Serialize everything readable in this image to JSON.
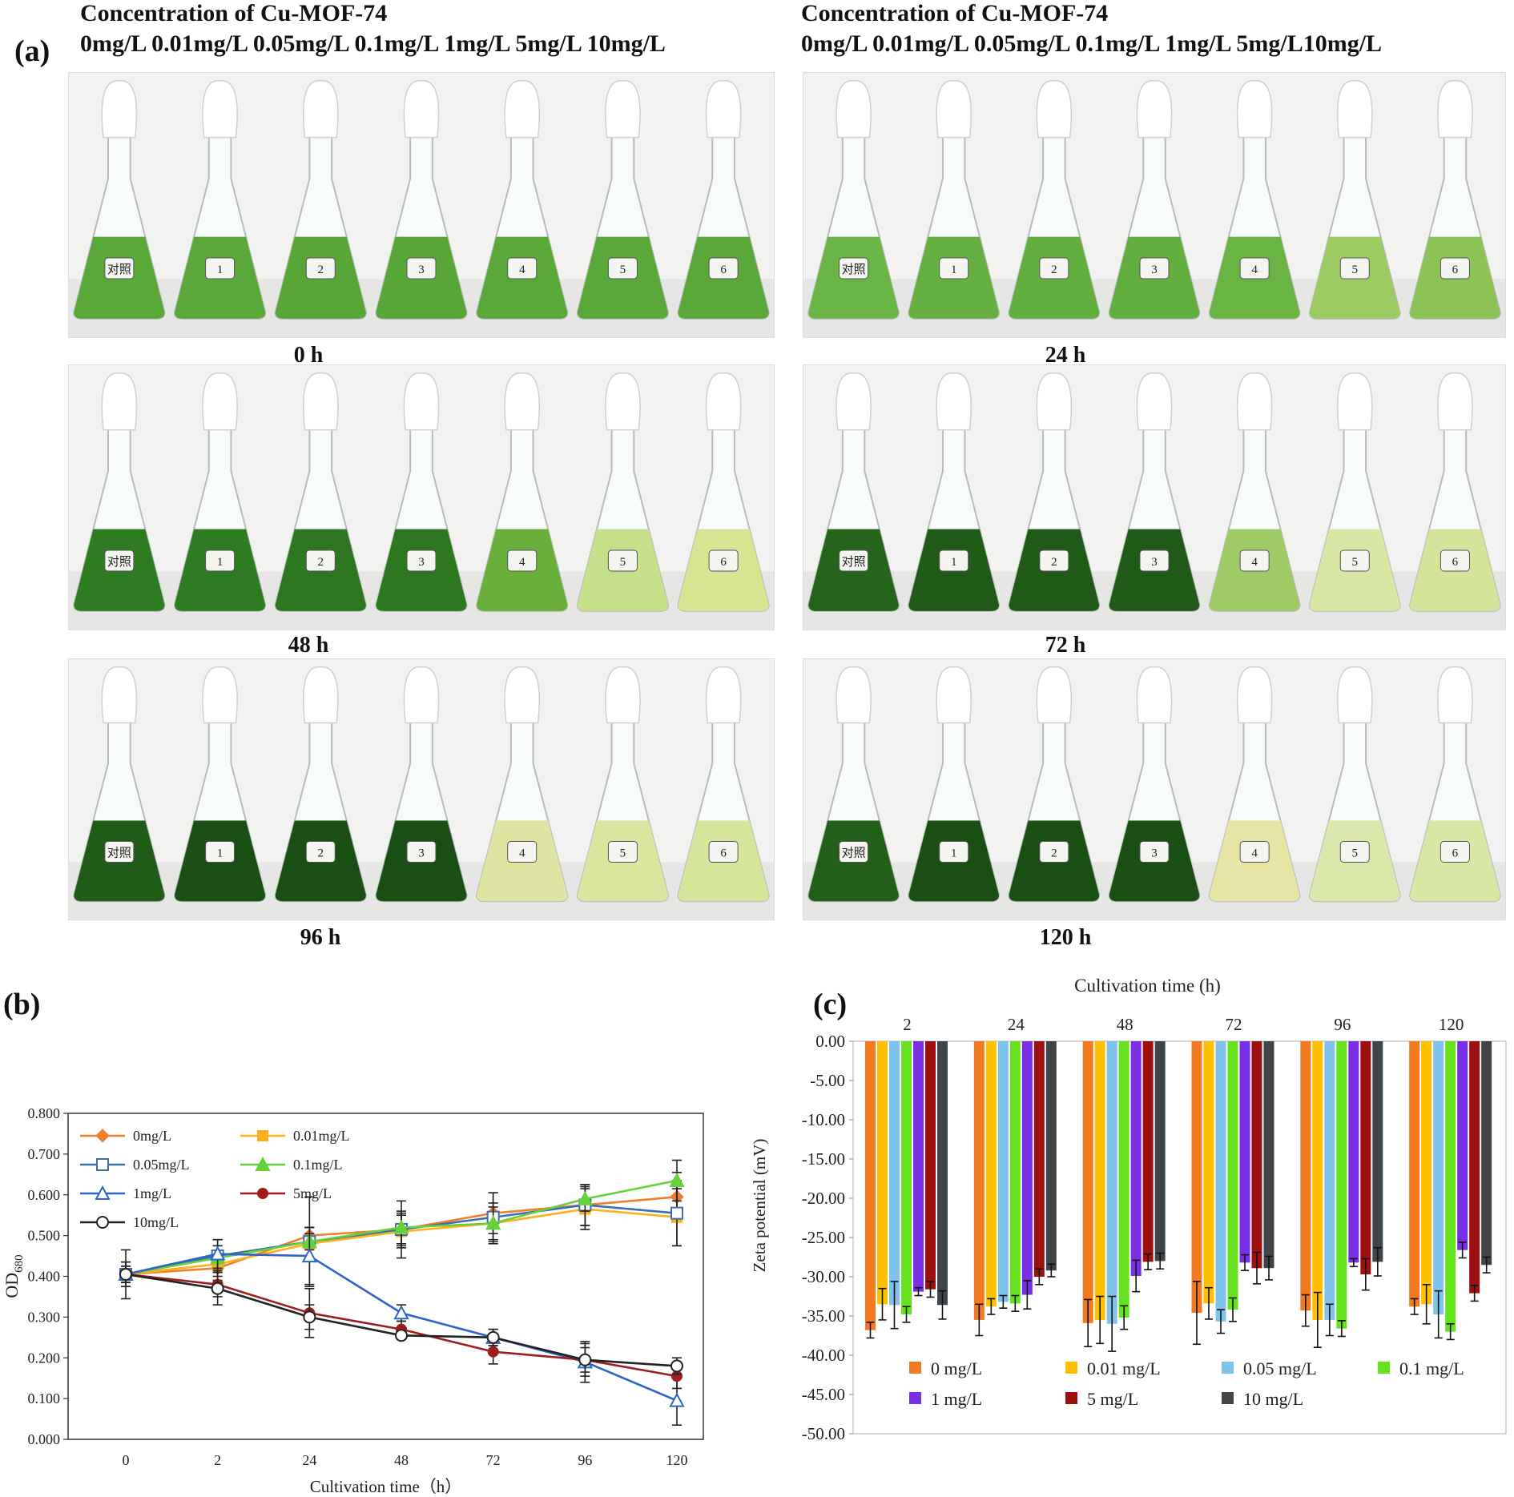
{
  "panel_a": {
    "label": "(a)",
    "left_header": {
      "title": "Concentration of Cu-MOF-74",
      "concentrations": "0mg/L 0.01mg/L 0.05mg/L 0.1mg/L  1mg/L  5mg/L  10mg/L"
    },
    "right_header": {
      "title": "Concentration of Cu-MOF-74",
      "concentrations": "0mg/L 0.01mg/L 0.05mg/L 0.1mg/L 1mg/L 5mg/L10mg/L"
    },
    "photos": [
      {
        "time": "0 h",
        "flask_labels": [
          "对照",
          "1",
          "2",
          "3",
          "4",
          "5",
          "6"
        ],
        "liquid_colors": [
          "#5aa83a",
          "#5aa83a",
          "#58a638",
          "#58a638",
          "#5aa83a",
          "#5aa83a",
          "#5aa83a"
        ]
      },
      {
        "time": "24 h",
        "flask_labels": [
          "对照",
          "1",
          "2",
          "3",
          "4",
          "5",
          "6"
        ],
        "liquid_colors": [
          "#6bb446",
          "#65b040",
          "#62ae3e",
          "#62ae3e",
          "#6ab444",
          "#9ccb63",
          "#8cc356"
        ]
      },
      {
        "time": "48 h",
        "flask_labels": [
          "对照",
          "1",
          "2",
          "3",
          "4",
          "5",
          "6"
        ],
        "liquid_colors": [
          "#2f7b22",
          "#2f7b22",
          "#2c7720",
          "#2c7720",
          "#6aae3c",
          "#c6df8a",
          "#d6e592"
        ]
      },
      {
        "time": "72 h",
        "flask_labels": [
          "对照",
          "1",
          "2",
          "3",
          "4",
          "5",
          "6"
        ],
        "liquid_colors": [
          "#24651b",
          "#1f5a17",
          "#1f5a17",
          "#1f5a17",
          "#9fcb66",
          "#d9e7a4",
          "#d4e39a"
        ]
      },
      {
        "time": "96 h",
        "flask_labels": [
          "对照",
          "1",
          "2",
          "3",
          "4",
          "5",
          "6"
        ],
        "liquid_colors": [
          "#1f5c17",
          "#1a4f14",
          "#1a4f14",
          "#1a4f14",
          "#dfe4a2",
          "#d8e6a0",
          "#d5e59c"
        ]
      },
      {
        "time": "120 h",
        "flask_labels": [
          "对照",
          "1",
          "2",
          "3",
          "4",
          "5",
          "6"
        ],
        "liquid_colors": [
          "#226019",
          "#1a4f14",
          "#1a4f14",
          "#1a4f14",
          "#e6e5a6",
          "#dbe8ab",
          "#d7e7a4"
        ]
      }
    ]
  },
  "panel_b": {
    "label": "(b)"
  },
  "panel_c": {
    "label": "(c)"
  },
  "chart_data": [
    {
      "type": "line",
      "xlabel": "Cultivation time（h）",
      "ylabel": "OD680",
      "categories": [
        "0",
        "2",
        "24",
        "48",
        "72",
        "96",
        "120"
      ],
      "ylim": [
        0,
        0.8
      ],
      "yticks": [
        "0.000",
        "0.100",
        "0.200",
        "0.300",
        "0.400",
        "0.500",
        "0.600",
        "0.700",
        "0.800"
      ],
      "grid": false,
      "legend": "top-left",
      "series": [
        {
          "name": "0mg/L",
          "color": "#f07f2d",
          "marker": "diamond-filled",
          "values": [
            0.405,
            0.42,
            0.5,
            0.515,
            0.555,
            0.575,
            0.595
          ],
          "err": [
            0.02,
            0.03,
            0.02,
            0.04,
            0.05,
            0.05,
            0.06
          ]
        },
        {
          "name": "0.01mg/L",
          "color": "#ffb01a",
          "marker": "square-filled",
          "values": [
            0.405,
            0.43,
            0.48,
            0.51,
            0.53,
            0.565,
            0.545
          ],
          "err": [
            0.03,
            0.03,
            0.04,
            0.04,
            0.05,
            0.05,
            0.07
          ]
        },
        {
          "name": "0.05mg/L",
          "color": "#3f6fb0",
          "marker": "square-open",
          "values": [
            0.405,
            0.45,
            0.485,
            0.515,
            0.545,
            0.575,
            0.555
          ],
          "err": [
            0.06,
            0.04,
            0.11,
            0.07,
            0.06,
            0.05,
            0.08
          ]
        },
        {
          "name": "0.1mg/L",
          "color": "#66d13a",
          "marker": "triangle-open",
          "values": [
            0.405,
            0.445,
            0.485,
            0.52,
            0.53,
            0.59,
            0.635
          ],
          "err": [
            0.03,
            0.03,
            0.02,
            0.04,
            0.04,
            0.03,
            0.05
          ]
        },
        {
          "name": "1mg/L",
          "color": "#2f64c8",
          "marker": "triangle-open",
          "values": [
            0.405,
            0.455,
            0.45,
            0.31,
            0.25,
            0.19,
            0.095
          ],
          "err": [
            0.02,
            0.035,
            0.07,
            0.02,
            0.02,
            0.05,
            0.06
          ]
        },
        {
          "name": "5mg/L",
          "color": "#a01d1d",
          "marker": "circle-filled",
          "values": [
            0.405,
            0.38,
            0.31,
            0.27,
            0.215,
            0.195,
            0.155
          ],
          "err": [
            0.02,
            0.03,
            0.06,
            0.02,
            0.03,
            0.03,
            0.03
          ]
        },
        {
          "name": "10mg/L",
          "color": "#222222",
          "marker": "circle-open",
          "values": [
            0.405,
            0.37,
            0.3,
            0.255,
            0.25,
            0.195,
            0.18
          ],
          "err": [
            0.02,
            0.04,
            0.03,
            0.01,
            0.02,
            0.04,
            0.02
          ]
        }
      ]
    },
    {
      "type": "bar",
      "title": "Cultivation time (h)",
      "ylabel": "Zeta potential (mV)",
      "categories": [
        "2",
        "24",
        "48",
        "72",
        "96",
        "120"
      ],
      "ylim": [
        -50,
        0
      ],
      "yticks": [
        "0.00",
        "-5.00",
        "-10.00",
        "-15.00",
        "-20.00",
        "-25.00",
        "-30.00",
        "-35.00",
        "-40.00",
        "-45.00",
        "-50.00"
      ],
      "legend": "bottom-inside",
      "series": [
        {
          "name": "0 mg/L",
          "color": "#f27a21",
          "values": [
            -36.8,
            -35.5,
            -35.9,
            -34.6,
            -34.3,
            -33.8
          ],
          "err": [
            1.0,
            2.0,
            3.0,
            4.0,
            2.0,
            1.0
          ]
        },
        {
          "name": "0.01 mg/L",
          "color": "#ffc000",
          "values": [
            -33.5,
            -33.8,
            -35.5,
            -33.4,
            -35.5,
            -33.5
          ],
          "err": [
            2.0,
            1.0,
            3.0,
            2.0,
            3.5,
            2.5
          ]
        },
        {
          "name": "0.05 mg/L",
          "color": "#7ec4ea",
          "values": [
            -33.6,
            -33.2,
            -36.0,
            -35.7,
            -35.5,
            -34.8
          ],
          "err": [
            3.0,
            0.8,
            3.5,
            1.5,
            2.0,
            3.0
          ]
        },
        {
          "name": "0.1 mg/L",
          "color": "#66e31e",
          "values": [
            -34.8,
            -33.4,
            -35.2,
            -34.2,
            -36.6,
            -37.0
          ],
          "err": [
            1.0,
            1.0,
            1.5,
            1.5,
            1.0,
            1.0
          ]
        },
        {
          "name": "1 mg/L",
          "color": "#7a2ee6",
          "values": [
            -31.9,
            -32.3,
            -29.9,
            -28.2,
            -28.2,
            -26.6
          ],
          "err": [
            0.5,
            1.8,
            2.0,
            1.0,
            0.5,
            1.0
          ]
        },
        {
          "name": "5 mg/L",
          "color": "#9e1010",
          "values": [
            -31.6,
            -30.0,
            -28.1,
            -28.9,
            -29.7,
            -32.1
          ],
          "err": [
            1.0,
            1.0,
            1.0,
            2.0,
            2.0,
            1.0
          ]
        },
        {
          "name": "10 mg/L",
          "color": "#3f4548",
          "values": [
            -33.6,
            -29.2,
            -28.0,
            -28.9,
            -28.1,
            -28.5
          ],
          "err": [
            1.8,
            0.8,
            1.0,
            1.5,
            1.8,
            1.0
          ]
        }
      ]
    }
  ]
}
